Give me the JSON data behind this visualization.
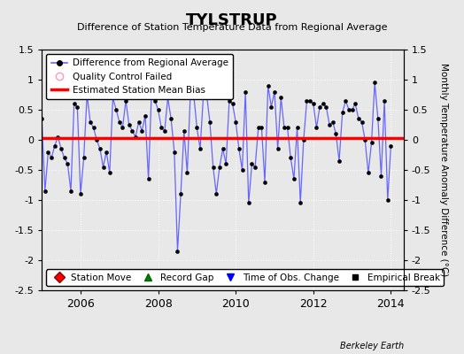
{
  "title": "TYLSTRUP",
  "subtitle": "Difference of Station Temperature Data from Regional Average",
  "ylabel": "Monthly Temperature Anomaly Difference (°C)",
  "xlabel_years": [
    2006,
    2008,
    2010,
    2012,
    2014
  ],
  "bias": 0.03,
  "ylim": [
    -2.5,
    1.5
  ],
  "background_color": "#e8e8e8",
  "line_color": "#6666ff",
  "bias_color": "#ff0000",
  "footer": "Berkeley Earth",
  "x_values": [
    2005.0,
    2005.083,
    2005.167,
    2005.25,
    2005.333,
    2005.417,
    2005.5,
    2005.583,
    2005.667,
    2005.75,
    2005.833,
    2005.917,
    2006.0,
    2006.083,
    2006.167,
    2006.25,
    2006.333,
    2006.417,
    2006.5,
    2006.583,
    2006.667,
    2006.75,
    2006.833,
    2006.917,
    2007.0,
    2007.083,
    2007.167,
    2007.25,
    2007.333,
    2007.417,
    2007.5,
    2007.583,
    2007.667,
    2007.75,
    2007.833,
    2007.917,
    2008.0,
    2008.083,
    2008.167,
    2008.25,
    2008.333,
    2008.417,
    2008.5,
    2008.583,
    2008.667,
    2008.75,
    2008.833,
    2008.917,
    2009.0,
    2009.083,
    2009.167,
    2009.25,
    2009.333,
    2009.417,
    2009.5,
    2009.583,
    2009.667,
    2009.75,
    2009.833,
    2009.917,
    2010.0,
    2010.083,
    2010.167,
    2010.25,
    2010.333,
    2010.417,
    2010.5,
    2010.583,
    2010.667,
    2010.75,
    2010.833,
    2010.917,
    2011.0,
    2011.083,
    2011.167,
    2011.25,
    2011.333,
    2011.417,
    2011.5,
    2011.583,
    2011.667,
    2011.75,
    2011.833,
    2011.917,
    2012.0,
    2012.083,
    2012.167,
    2012.25,
    2012.333,
    2012.417,
    2012.5,
    2012.583,
    2012.667,
    2012.75,
    2012.833,
    2012.917,
    2013.0,
    2013.083,
    2013.167,
    2013.25,
    2013.333,
    2013.417,
    2013.5,
    2013.583,
    2013.667,
    2013.75,
    2013.833,
    2013.917,
    2014.0
  ],
  "y_values": [
    0.35,
    -0.85,
    -0.2,
    -0.3,
    -0.1,
    0.05,
    -0.15,
    -0.3,
    -0.4,
    -0.85,
    0.6,
    0.55,
    -0.9,
    -0.3,
    0.75,
    0.3,
    0.2,
    0.0,
    -0.15,
    -0.45,
    -0.2,
    -0.55,
    0.7,
    0.5,
    0.3,
    0.2,
    0.65,
    0.25,
    0.15,
    0.05,
    0.3,
    0.15,
    0.4,
    -0.65,
    0.85,
    0.65,
    0.5,
    0.2,
    0.15,
    0.7,
    0.35,
    -0.2,
    -1.85,
    -0.9,
    0.15,
    -0.55,
    0.8,
    0.75,
    0.2,
    -0.15,
    0.75,
    0.75,
    0.3,
    -0.45,
    -0.9,
    -0.45,
    -0.15,
    -0.4,
    0.65,
    0.6,
    0.3,
    -0.15,
    -0.5,
    0.8,
    -1.05,
    -0.4,
    -0.45,
    0.2,
    0.2,
    -0.7,
    0.9,
    0.55,
    0.8,
    -0.15,
    0.7,
    0.2,
    0.2,
    -0.3,
    -0.65,
    0.2,
    -1.05,
    0.0,
    0.65,
    0.65,
    0.6,
    0.2,
    0.55,
    0.6,
    0.55,
    0.25,
    0.3,
    0.1,
    -0.35,
    0.45,
    0.65,
    0.5,
    0.5,
    0.6,
    0.35,
    0.3,
    0.0,
    -0.55,
    -0.05,
    0.95,
    0.35,
    -0.6,
    0.65,
    -1.0,
    -0.1
  ]
}
